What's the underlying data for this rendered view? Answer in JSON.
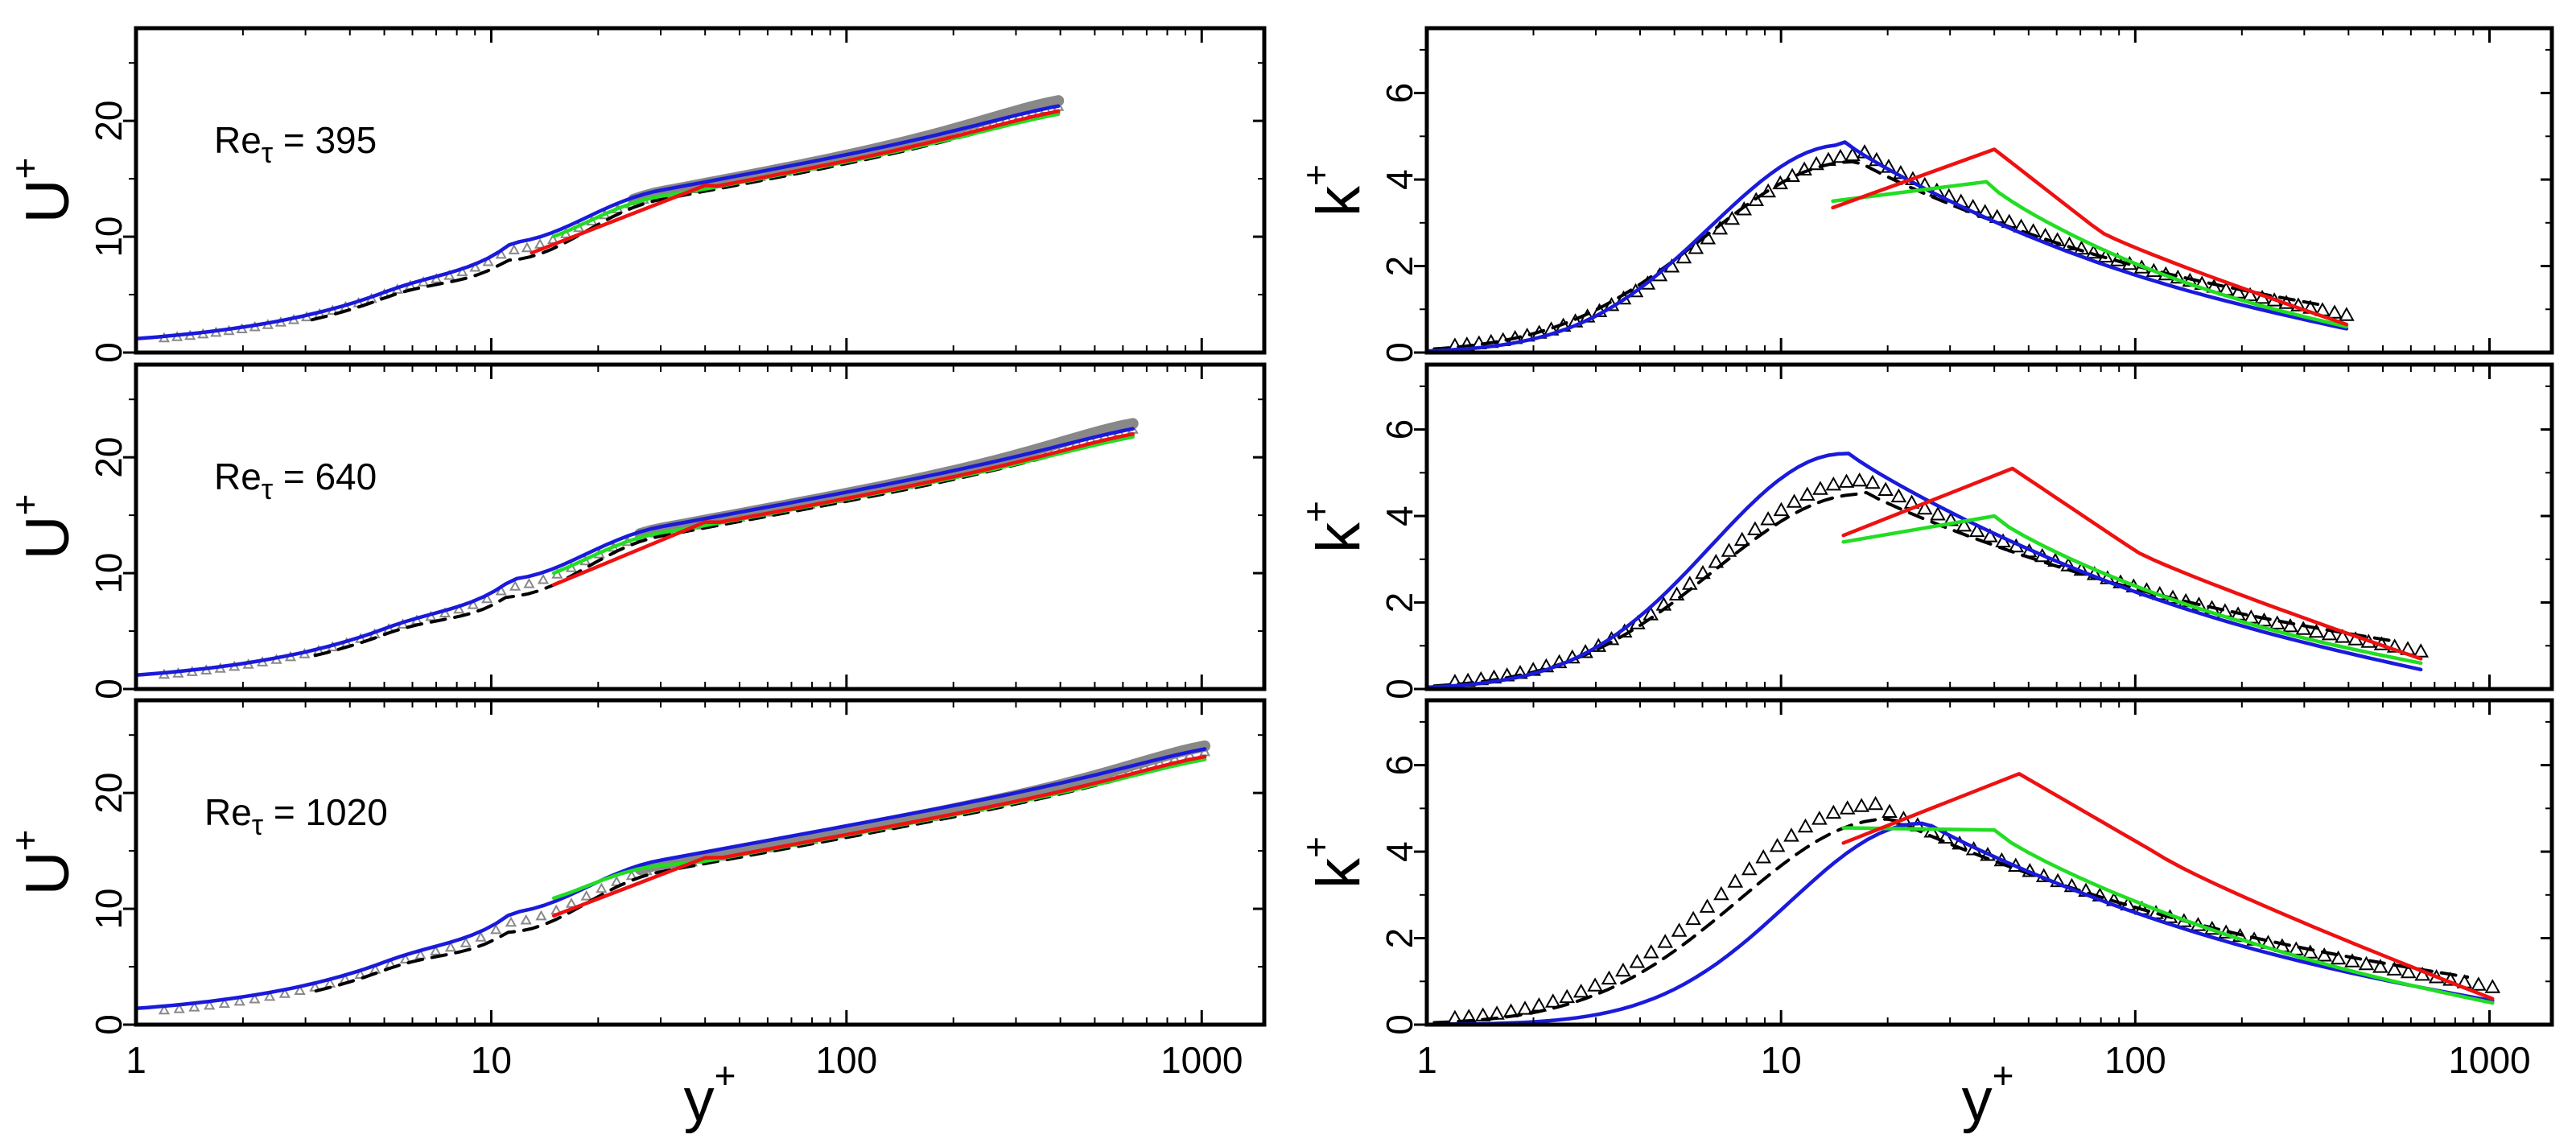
{
  "figure": {
    "background": "#ffffff"
  },
  "colors": {
    "dns_markers": "#000000",
    "dns_markers_u": "#888888",
    "les_gray": "#888888",
    "blue": "#1a1adb",
    "green": "#22dd22",
    "red": "#ee1111",
    "dashed": "#000000"
  },
  "labels": {
    "x_axis": "y",
    "x_sup": "+",
    "u_axis": "U",
    "u_sup": "+",
    "k_axis": "k",
    "k_sup": "+",
    "re_prefix": "Re",
    "re_sub": "τ",
    "re_eq": " = "
  },
  "cases": [
    {
      "re_value": "395",
      "ymax": 395
    },
    {
      "re_value": "640",
      "ymax": 640
    },
    {
      "re_value": "1020",
      "ymax": 1020
    }
  ],
  "chart_data": {
    "type": "line",
    "layout": "3 rows x 2 columns (left: mean velocity U+, right: turbulent kinetic energy k+)",
    "x_axis": {
      "label": "y+",
      "scale": "log",
      "range": [
        1,
        1500
      ],
      "ticks": [
        1,
        10,
        100,
        1000
      ],
      "tick_labels": [
        "1",
        "10",
        "100",
        "1000"
      ]
    },
    "u_axis": {
      "label": "U+",
      "range": [
        0,
        28
      ],
      "ticks": [
        0,
        10,
        20
      ],
      "tick_labels": [
        "0",
        "10",
        "20"
      ]
    },
    "k_axis": {
      "label": "k+",
      "range": [
        0,
        7.5
      ],
      "ticks": [
        0,
        2,
        4,
        6
      ],
      "tick_labels": [
        "0",
        "2",
        "4",
        "6"
      ]
    },
    "velocity_series": [
      {
        "name": "DNS (open triangles)",
        "style": "markers"
      },
      {
        "name": "gray band",
        "style": "thick gray line"
      },
      {
        "name": "dashed",
        "style": "black dashed line"
      },
      {
        "name": "blue",
        "style": "solid"
      },
      {
        "name": "green",
        "style": "solid"
      },
      {
        "name": "red",
        "style": "solid"
      }
    ],
    "k_series": {
      "ymax": [
        395,
        640,
        1020
      ],
      "blue_peak": [
        [
          15,
          4.9
        ],
        [
          15,
          5.55
        ],
        [
          25,
          4.75
        ]
      ],
      "dns_peak": [
        [
          17,
          4.6
        ],
        [
          17,
          4.85
        ],
        [
          18,
          5.1
        ]
      ],
      "dashed_peak": [
        [
          16,
          4.5
        ],
        [
          17,
          4.6
        ],
        [
          20,
          4.85
        ]
      ],
      "red_start": [
        [
          14,
          3.35
        ],
        [
          15,
          3.55
        ],
        [
          15,
          4.2
        ]
      ],
      "red_peak": [
        [
          40,
          4.7
        ],
        [
          45,
          5.1
        ],
        [
          47,
          5.8
        ]
      ],
      "green_start": [
        [
          14,
          3.5
        ],
        [
          15,
          3.4
        ],
        [
          15,
          4.55
        ]
      ],
      "green_peak": [
        [
          38,
          3.95
        ],
        [
          40,
          4.0
        ],
        [
          40,
          4.5
        ]
      ],
      "end_values": {
        "dns": [
          0.8,
          0.8,
          0.8
        ],
        "blue": [
          0.55,
          0.45,
          0.55
        ],
        "green": [
          0.6,
          0.6,
          0.5
        ],
        "red": [
          0.65,
          0.7,
          0.6
        ]
      }
    }
  }
}
